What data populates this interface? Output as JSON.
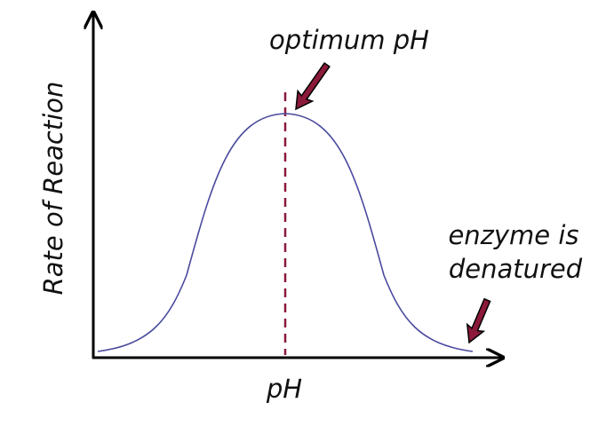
{
  "diagram": {
    "y_axis_label": "Rate of Reaction",
    "x_axis_label": "pH",
    "annotations": [
      "optimum pH",
      "enzyme is",
      "denatured"
    ]
  }
}
